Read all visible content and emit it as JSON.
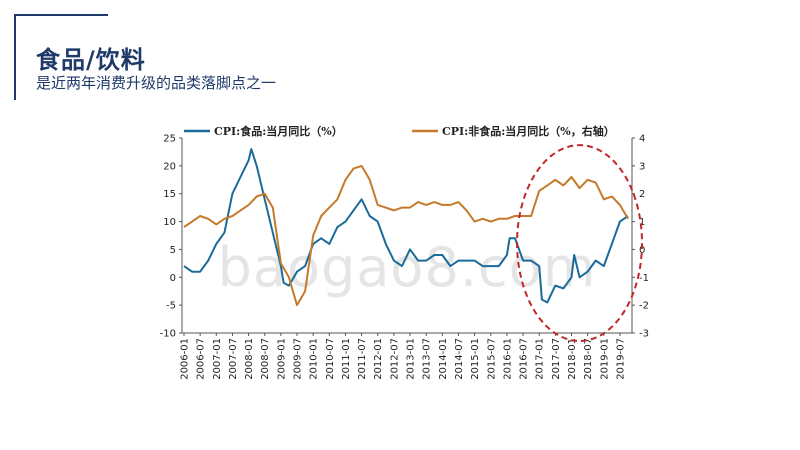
{
  "slide": {
    "title": "食品/饮料",
    "subtitle": "是近两年消费升级的品类落脚点之一"
  },
  "watermark": "baogao8.com",
  "chart_data": {
    "type": "line",
    "title": "",
    "xlabel": "",
    "ylabel": "",
    "y_left": {
      "lim": [
        -10,
        25
      ],
      "ticks": [
        -10,
        -5,
        0,
        5,
        10,
        15,
        20,
        25
      ]
    },
    "y_right": {
      "lim": [
        -3,
        4
      ],
      "ticks": [
        -3,
        -2,
        -1,
        0,
        1,
        2,
        3,
        4
      ]
    },
    "x_ticks": [
      "2006-01",
      "2006-07",
      "2007-01",
      "2007-07",
      "2008-01",
      "2008-07",
      "2009-01",
      "2009-07",
      "2010-01",
      "2010-07",
      "2011-01",
      "2011-07",
      "2012-01",
      "2012-07",
      "2013-01",
      "2013-07",
      "2014-01",
      "2014-07",
      "2015-01",
      "2015-07",
      "2016-01",
      "2016-07",
      "2017-01",
      "2017-07",
      "2018-01",
      "2018-07",
      "2019-01",
      "2019-07"
    ],
    "legend_position": "top",
    "series": [
      {
        "name": "CPI:食品:当月同比（%）",
        "axis": "left",
        "color": "#1a6b9a",
        "x": [
          "2006-01",
          "2006-04",
          "2006-07",
          "2006-10",
          "2007-01",
          "2007-04",
          "2007-07",
          "2007-10",
          "2008-01",
          "2008-02",
          "2008-04",
          "2008-07",
          "2008-10",
          "2009-01",
          "2009-02",
          "2009-04",
          "2009-07",
          "2009-10",
          "2010-01",
          "2010-04",
          "2010-07",
          "2010-10",
          "2011-01",
          "2011-04",
          "2011-07",
          "2011-10",
          "2012-01",
          "2012-04",
          "2012-07",
          "2012-10",
          "2013-01",
          "2013-04",
          "2013-07",
          "2013-10",
          "2014-01",
          "2014-04",
          "2014-07",
          "2014-10",
          "2015-01",
          "2015-04",
          "2015-07",
          "2015-10",
          "2016-01",
          "2016-02",
          "2016-04",
          "2016-07",
          "2016-10",
          "2017-01",
          "2017-02",
          "2017-04",
          "2017-07",
          "2017-10",
          "2018-01",
          "2018-02",
          "2018-04",
          "2018-07",
          "2018-10",
          "2019-01",
          "2019-04",
          "2019-07",
          "2019-10"
        ],
        "values": [
          2,
          1,
          1,
          3,
          6,
          8,
          15,
          18,
          21,
          23,
          20,
          14,
          8,
          2,
          -1,
          -1.5,
          1,
          2,
          6,
          7,
          6,
          9,
          10,
          12,
          14,
          11,
          10,
          6,
          3,
          2,
          5,
          3,
          3,
          4,
          4,
          2,
          3,
          3,
          3,
          2,
          2,
          2,
          4,
          7,
          7,
          3,
          3,
          2,
          -4,
          -4.5,
          -1.5,
          -2,
          0,
          4,
          0,
          1,
          3,
          2,
          6,
          10,
          11
        ]
      },
      {
        "name": "CPI:非食品:当月同比（%，右轴）",
        "axis": "right",
        "color": "#c47a2a",
        "x": [
          "2006-01",
          "2006-04",
          "2006-07",
          "2006-10",
          "2007-01",
          "2007-04",
          "2007-07",
          "2007-10",
          "2008-01",
          "2008-04",
          "2008-07",
          "2008-10",
          "2009-01",
          "2009-04",
          "2009-07",
          "2009-10",
          "2010-01",
          "2010-04",
          "2010-07",
          "2010-10",
          "2011-01",
          "2011-04",
          "2011-07",
          "2011-10",
          "2012-01",
          "2012-04",
          "2012-07",
          "2012-10",
          "2013-01",
          "2013-04",
          "2013-07",
          "2013-10",
          "2014-01",
          "2014-04",
          "2014-07",
          "2014-10",
          "2015-01",
          "2015-04",
          "2015-07",
          "2015-10",
          "2016-01",
          "2016-04",
          "2016-07",
          "2016-10",
          "2017-01",
          "2017-04",
          "2017-07",
          "2017-10",
          "2018-01",
          "2018-04",
          "2018-07",
          "2018-10",
          "2019-01",
          "2019-04",
          "2019-07",
          "2019-10"
        ],
        "values": [
          0.8,
          1.0,
          1.2,
          1.1,
          0.9,
          1.1,
          1.2,
          1.4,
          1.6,
          1.9,
          2.0,
          1.5,
          -0.5,
          -1.0,
          -2.0,
          -1.5,
          0.5,
          1.2,
          1.5,
          1.8,
          2.5,
          2.9,
          3.0,
          2.5,
          1.6,
          1.5,
          1.4,
          1.5,
          1.5,
          1.7,
          1.6,
          1.7,
          1.6,
          1.6,
          1.7,
          1.4,
          1.0,
          1.1,
          1.0,
          1.1,
          1.1,
          1.2,
          1.2,
          1.2,
          2.1,
          2.3,
          2.5,
          2.3,
          2.6,
          2.2,
          2.5,
          2.4,
          1.8,
          1.9,
          1.6,
          1.1
        ]
      }
    ],
    "annotation": {
      "shape": "dashed-ellipse",
      "color": "#c0282a",
      "x_range": [
        "2016-07",
        "2019-10"
      ],
      "y_range_left": [
        -10,
        23
      ]
    }
  }
}
